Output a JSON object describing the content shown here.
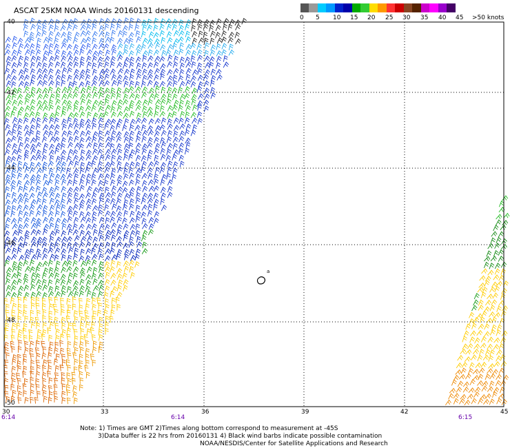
{
  "title": "ASCAT 25KM NOAA Winds 20160131 descending",
  "legend": {
    "colors": [
      "#555555",
      "#999999",
      "#00ccff",
      "#0099ff",
      "#0022cc",
      "#0000aa",
      "#00aa00",
      "#33cc33",
      "#ffdd00",
      "#ff9900",
      "#ff3333",
      "#cc0000",
      "#884422",
      "#552200",
      "#cc00cc",
      "#ff00ff",
      "#9900cc",
      "#440066"
    ],
    "labels": [
      "0",
      "5",
      "10",
      "15",
      "20",
      "25",
      "30",
      "35",
      "40",
      "45",
      ">50 knots"
    ]
  },
  "axes": {
    "lon_ticks": [
      "30",
      "33",
      "36",
      "39",
      "42",
      "45"
    ],
    "lat_ticks": [
      "-40",
      "-42",
      "-44",
      "-46",
      "-48",
      "-50"
    ]
  },
  "times": [
    "6:14",
    "6:14",
    "6:15"
  ],
  "notes": [
    "Note: 1) Times are GMT 2)Times along bottom correspond to measurement at -45S",
    "3)Data buffer is 22 hrs from 20160131 4) Black wind barbs indicate possible contamination",
    "NOAA/NESDIS/Center for Satellite Applications and Research"
  ],
  "island_label": "a"
}
